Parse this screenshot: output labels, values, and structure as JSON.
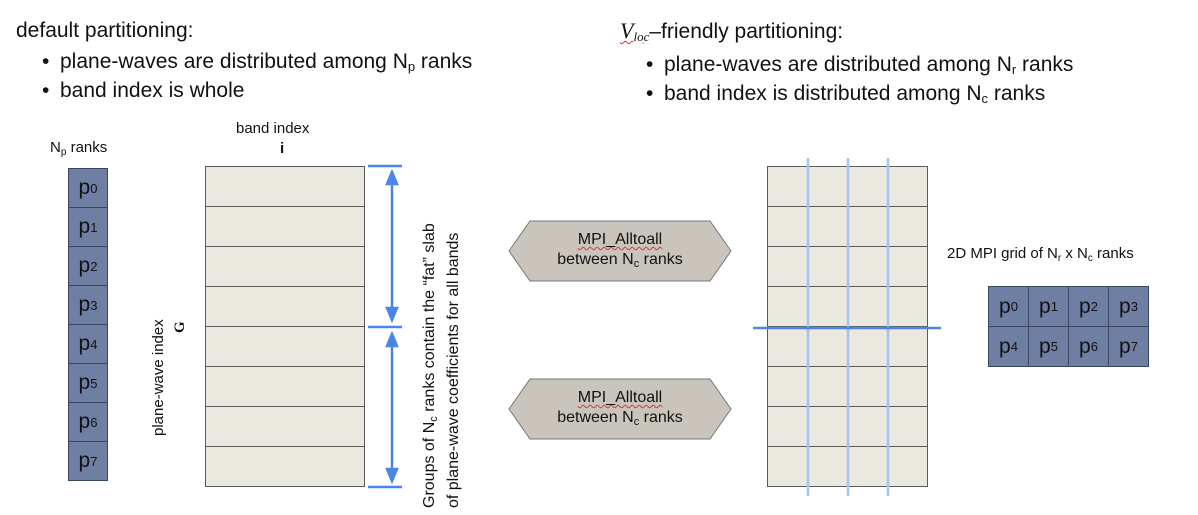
{
  "left": {
    "heading": "default partitioning:",
    "bullets": [
      {
        "pre": "plane-waves are distributed among N",
        "sub": "p",
        "post": " ranks"
      },
      {
        "pre": "band index is whole",
        "sub": "",
        "post": ""
      }
    ],
    "ranks_label": {
      "pre": "N",
      "sub": "p",
      "post": " ranks"
    },
    "ranks": [
      {
        "p": "p",
        "n": "0"
      },
      {
        "p": "p",
        "n": "1"
      },
      {
        "p": "p",
        "n": "2"
      },
      {
        "p": "p",
        "n": "3"
      },
      {
        "p": "p",
        "n": "4"
      },
      {
        "p": "p",
        "n": "5"
      },
      {
        "p": "p",
        "n": "6"
      },
      {
        "p": "p",
        "n": "7"
      }
    ],
    "band_index_label": "band index",
    "band_index_symbol": "i",
    "pw_index_label": "plane-wave index",
    "pw_index_symbol": "G",
    "groups_line1": {
      "pre": "Groups of N",
      "sub": "c",
      "post": " ranks contain the “fat” slab"
    },
    "groups_line2": "of plane-wave coefficients for all bands"
  },
  "right": {
    "heading_v": "V",
    "heading_v_sub": "loc",
    "heading_rest": "–friendly partitioning:",
    "bullets": [
      {
        "pre": "plane-waves are distributed among N",
        "sub": "r",
        "post": " ranks"
      },
      {
        "pre": "band index is distributed among N",
        "sub": "c",
        "post": " ranks"
      }
    ],
    "grid_label": {
      "pre": "2D MPI grid of N",
      "sub1": "r",
      "mid": " x N",
      "sub2": "c",
      "post": " ranks"
    },
    "grid_ranks": [
      {
        "p": "p",
        "n": "0"
      },
      {
        "p": "p",
        "n": "1"
      },
      {
        "p": "p",
        "n": "2"
      },
      {
        "p": "p",
        "n": "3"
      },
      {
        "p": "p",
        "n": "4"
      },
      {
        "p": "p",
        "n": "5"
      },
      {
        "p": "p",
        "n": "6"
      },
      {
        "p": "p",
        "n": "7"
      }
    ]
  },
  "mpi_boxes": [
    {
      "line1": "MPI_Alltoall",
      "line2_pre": "between N",
      "line2_sub": "c",
      "line2_post": " ranks"
    },
    {
      "line1": "MPI_Alltoall",
      "line2_pre": "between N",
      "line2_sub": "c",
      "line2_post": " ranks"
    }
  ],
  "colors": {
    "rank_fill": "#6e7fa3",
    "cell_fill": "#ebe8e0",
    "arrow_blue": "#4a86e8",
    "grid_line_blue": "#a4c2f4",
    "hex_fill": "#c9c5bd"
  }
}
